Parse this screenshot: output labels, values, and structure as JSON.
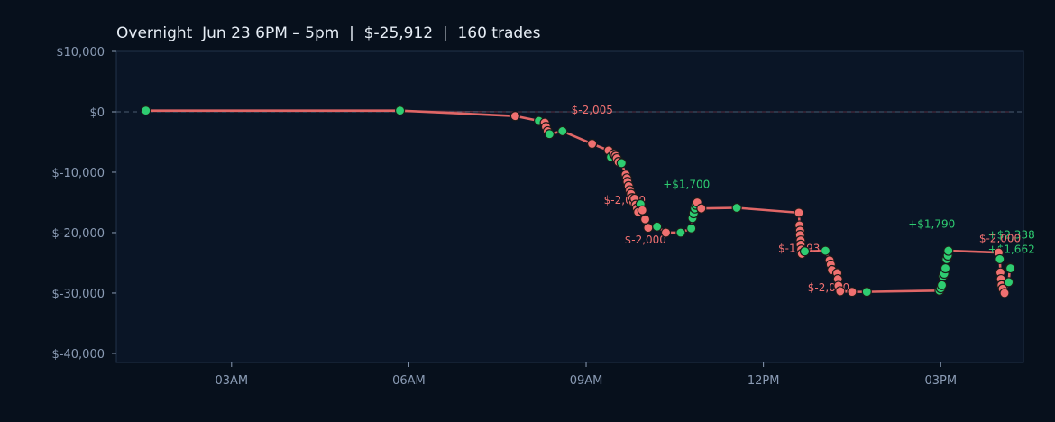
{
  "colors": {
    "background": "#07101c",
    "plot_background": "#0a1526",
    "axis": "#22324a",
    "tick_text": "#8a9bb4",
    "title_text": "#e6edf5",
    "line": "#e06666",
    "area_fill": "#3a2232",
    "win": "#2ecc71",
    "loss": "#f07070",
    "marker_edge": "#1a1a1a",
    "zero_line": "#4a5a70"
  },
  "chart_data": {
    "type": "line",
    "title": "Overnight  Jun 23 6PM – 5pm  |  $-25,912  |  160 trades",
    "xlabel": "",
    "ylabel": "",
    "x_range_hours": [
      1.05,
      16.4
    ],
    "ylim": [
      -41500,
      10000
    ],
    "xticks": [
      {
        "h": 3,
        "label": "03AM"
      },
      {
        "h": 6,
        "label": "06AM"
      },
      {
        "h": 9,
        "label": "09AM"
      },
      {
        "h": 12,
        "label": "12PM"
      },
      {
        "h": 15,
        "label": "03PM"
      }
    ],
    "yticks": [
      {
        "v": 10000,
        "label": "$10,000"
      },
      {
        "v": 0,
        "label": "$0"
      },
      {
        "v": -10000,
        "label": "$-10,000"
      },
      {
        "v": -20000,
        "label": "$-20,000"
      },
      {
        "v": -30000,
        "label": "$-30,000"
      },
      {
        "v": -40000,
        "label": "$-40,000"
      }
    ],
    "grid": false,
    "zero_line": true,
    "series": [
      {
        "points": [
          [
            1.55,
            200,
            "w"
          ],
          [
            5.85,
            200,
            "w"
          ],
          [
            7.8,
            -700,
            "l"
          ],
          [
            8.2,
            -1500,
            "w"
          ],
          [
            8.3,
            -1800,
            "l"
          ],
          [
            8.32,
            -2500,
            "l"
          ],
          [
            8.35,
            -3200,
            "l"
          ],
          [
            8.38,
            -3700,
            "w"
          ],
          [
            8.6,
            -3200,
            "w"
          ],
          [
            9.1,
            -5300,
            "l"
          ],
          [
            9.38,
            -6400,
            "l"
          ],
          [
            9.42,
            -7500,
            "w"
          ],
          [
            9.47,
            -7000,
            "l"
          ],
          [
            9.5,
            -7300,
            "l"
          ],
          [
            9.52,
            -7700,
            "l"
          ],
          [
            9.55,
            -8300,
            "l"
          ],
          [
            9.6,
            -8500,
            "w"
          ],
          [
            9.67,
            -10400,
            "l"
          ],
          [
            9.69,
            -11000,
            "l"
          ],
          [
            9.7,
            -11600,
            "l"
          ],
          [
            9.72,
            -12300,
            "l"
          ],
          [
            9.74,
            -13000,
            "l"
          ],
          [
            9.76,
            -13600,
            "l"
          ],
          [
            9.78,
            -14300,
            "l"
          ],
          [
            9.8,
            -15000,
            "l"
          ],
          [
            9.82,
            -14400,
            "l"
          ],
          [
            9.84,
            -15400,
            "l"
          ],
          [
            9.86,
            -16000,
            "l"
          ],
          [
            9.88,
            -16600,
            "l"
          ],
          [
            9.92,
            -15300,
            "w"
          ],
          [
            9.95,
            -16300,
            "l"
          ],
          [
            10.0,
            -17800,
            "l"
          ],
          [
            10.05,
            -19200,
            "l"
          ],
          [
            10.2,
            -19000,
            "w"
          ],
          [
            10.35,
            -20000,
            "l"
          ],
          [
            10.6,
            -20000,
            "w"
          ],
          [
            10.78,
            -19300,
            "w"
          ],
          [
            10.8,
            -17600,
            "w"
          ],
          [
            10.82,
            -16800,
            "w"
          ],
          [
            10.84,
            -16000,
            "w"
          ],
          [
            10.86,
            -15400,
            "w"
          ],
          [
            10.88,
            -15000,
            "l"
          ],
          [
            10.95,
            -16000,
            "l"
          ],
          [
            11.55,
            -15900,
            "w"
          ],
          [
            12.6,
            -16700,
            "l"
          ],
          [
            12.61,
            -18800,
            "l"
          ],
          [
            12.62,
            -19700,
            "l"
          ],
          [
            12.62,
            -20400,
            "l"
          ],
          [
            12.63,
            -21300,
            "l"
          ],
          [
            12.63,
            -22000,
            "l"
          ],
          [
            12.64,
            -22800,
            "l"
          ],
          [
            12.65,
            -23500,
            "l"
          ],
          [
            12.7,
            -23100,
            "w"
          ],
          [
            13.05,
            -23000,
            "w"
          ],
          [
            13.12,
            -24600,
            "l"
          ],
          [
            13.14,
            -25300,
            "l"
          ],
          [
            13.16,
            -26200,
            "l"
          ],
          [
            13.25,
            -26700,
            "l"
          ],
          [
            13.26,
            -27700,
            "l"
          ],
          [
            13.27,
            -28800,
            "l"
          ],
          [
            13.3,
            -29700,
            "l"
          ],
          [
            13.5,
            -29800,
            "l"
          ],
          [
            13.75,
            -29800,
            "w"
          ],
          [
            14.98,
            -29600,
            "w"
          ],
          [
            15.0,
            -29200,
            "w"
          ],
          [
            15.02,
            -28700,
            "w"
          ],
          [
            15.04,
            -27200,
            "w"
          ],
          [
            15.06,
            -26800,
            "w"
          ],
          [
            15.08,
            -25900,
            "w"
          ],
          [
            15.1,
            -24400,
            "w"
          ],
          [
            15.12,
            -23800,
            "w"
          ],
          [
            15.13,
            -23000,
            "w"
          ],
          [
            15.98,
            -23300,
            "l"
          ],
          [
            16.0,
            -24400,
            "w"
          ],
          [
            16.01,
            -26600,
            "l"
          ],
          [
            16.02,
            -27700,
            "l"
          ],
          [
            16.03,
            -28700,
            "l"
          ],
          [
            16.05,
            -29300,
            "l"
          ],
          [
            16.08,
            -30000,
            "l"
          ],
          [
            16.15,
            -28200,
            "w"
          ],
          [
            16.17,
            -25800,
            "w"
          ],
          [
            16.18,
            -25912,
            "w"
          ]
        ]
      }
    ],
    "annotations": [
      {
        "text": "$-2,005",
        "h": 8.75,
        "v": -300,
        "kind": "loss",
        "anchor": "start"
      },
      {
        "text": "+$1,700",
        "h": 10.3,
        "v": -12600,
        "kind": "win",
        "anchor": "start"
      },
      {
        "text": "$-2,000",
        "h": 9.3,
        "v": -15200,
        "kind": "loss",
        "anchor": "start"
      },
      {
        "text": "$-2,000",
        "h": 9.65,
        "v": -21800,
        "kind": "loss",
        "anchor": "start"
      },
      {
        "text": "$-1,993",
        "h": 12.25,
        "v": -23200,
        "kind": "loss",
        "anchor": "start"
      },
      {
        "text": "$-2,000",
        "h": 12.75,
        "v": -29700,
        "kind": "loss",
        "anchor": "start"
      },
      {
        "text": "+$1,790",
        "h": 14.45,
        "v": -19200,
        "kind": "win",
        "anchor": "start"
      },
      {
        "text": "+$2,338",
        "h": 15.8,
        "v": -21000,
        "kind": "win",
        "anchor": "start"
      },
      {
        "text": "$-2,000",
        "h": 15.65,
        "v": -21600,
        "kind": "loss",
        "anchor": "start"
      },
      {
        "text": "+$1,662",
        "h": 15.8,
        "v": -23400,
        "kind": "win",
        "anchor": "start"
      }
    ]
  }
}
